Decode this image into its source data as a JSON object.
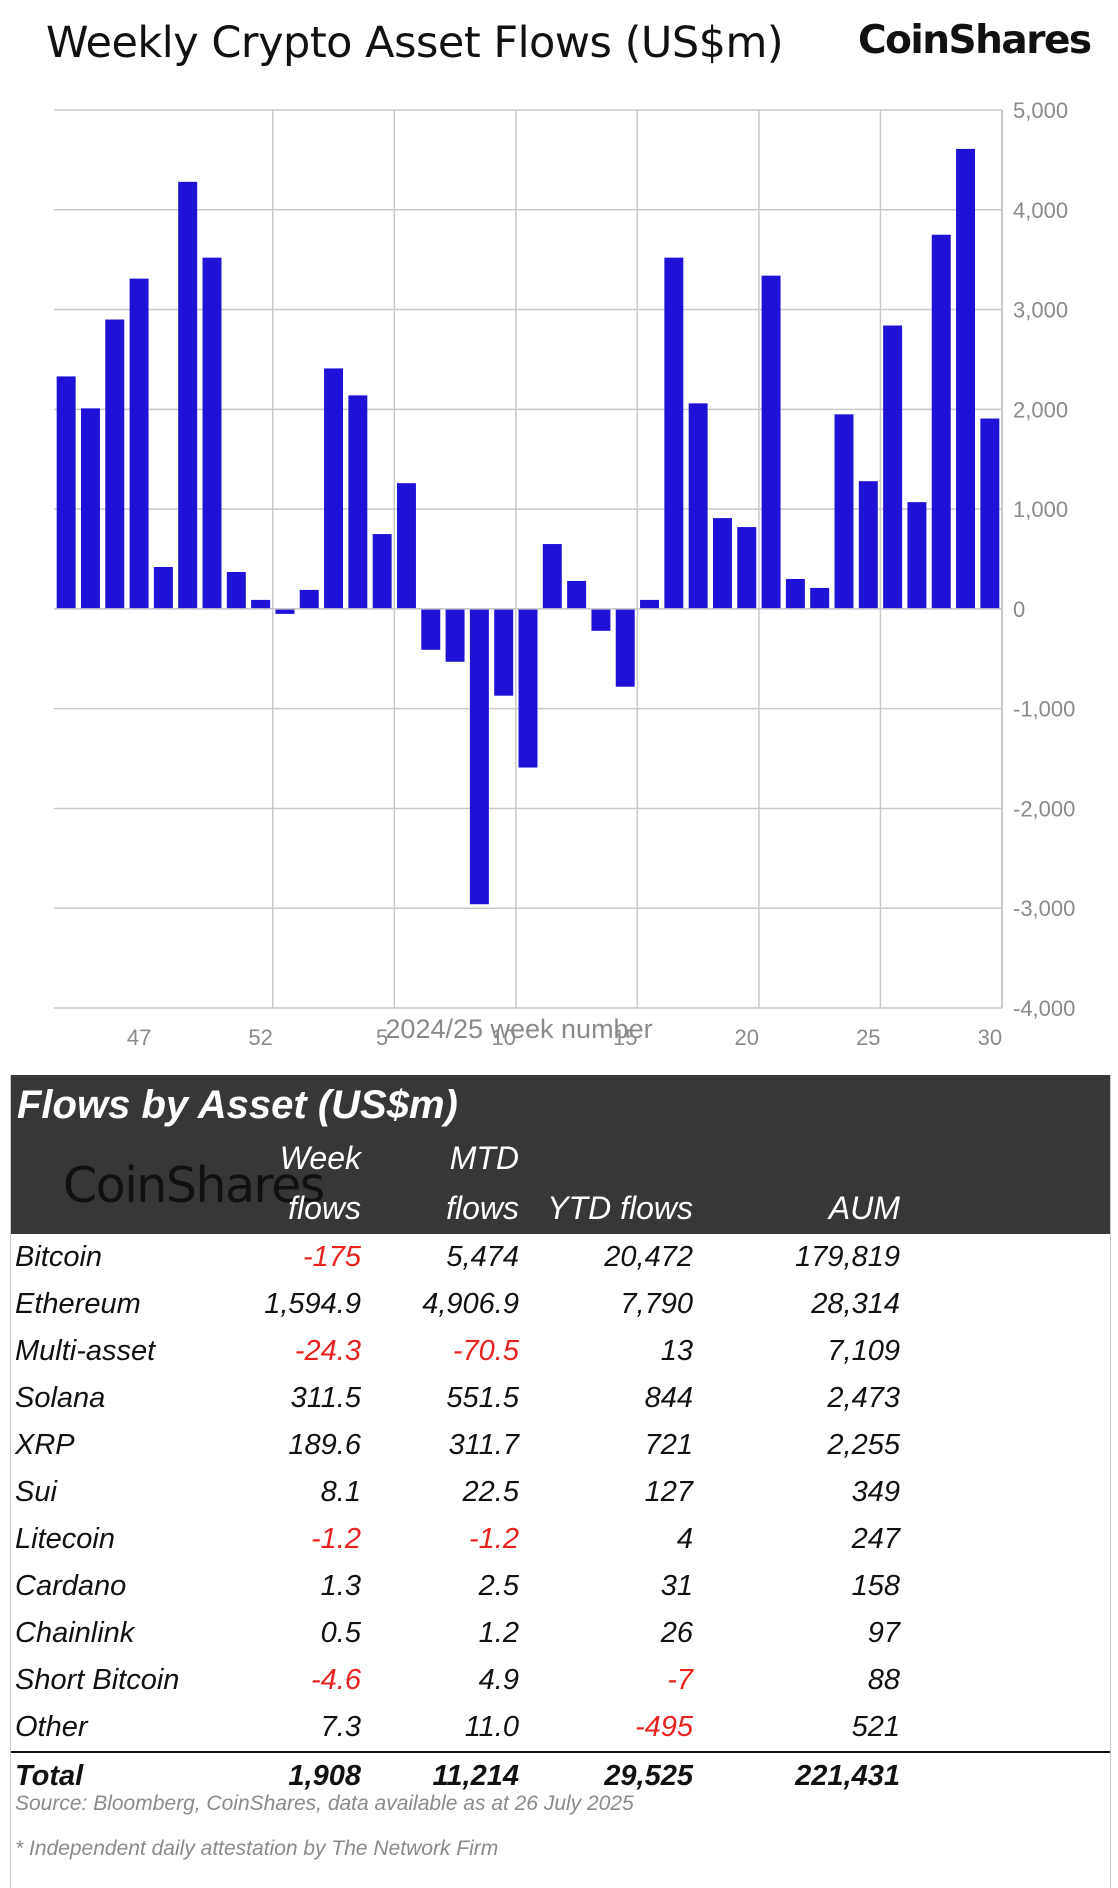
{
  "header": {
    "title": "Weekly Crypto Asset Flows (US$m)",
    "brand": "CoinShares"
  },
  "chart_data": {
    "type": "bar",
    "title": "Weekly Crypto Asset Flows (US$m)",
    "xlabel": "2024/25 week number",
    "ylabel": "",
    "ylim": [
      -4000,
      5000
    ],
    "yticks": [
      5000,
      4000,
      3000,
      2000,
      1000,
      0,
      -1000,
      -2000,
      -3000,
      -4000
    ],
    "ytick_labels": [
      "5,000",
      "4,000",
      "3,000",
      "2,000",
      "1,000",
      "0",
      "-1,000",
      "-2,000",
      "-3,000",
      "-4,000"
    ],
    "xtick_labels": [
      "47",
      "52",
      "5",
      "10",
      "15",
      "20",
      "25",
      "30"
    ],
    "categories": [
      "44",
      "45",
      "46",
      "47",
      "48",
      "49",
      "50",
      "51",
      "52",
      "1",
      "2",
      "3",
      "4",
      "5",
      "6",
      "7",
      "8",
      "9",
      "10",
      "11",
      "12",
      "13",
      "14",
      "15",
      "16",
      "17",
      "18",
      "19",
      "20",
      "21",
      "22",
      "23",
      "24",
      "25",
      "26",
      "27",
      "28",
      "29",
      "30"
    ],
    "values": [
      2330,
      2010,
      2900,
      3310,
      420,
      4280,
      3520,
      370,
      90,
      -50,
      190,
      2410,
      2140,
      750,
      1260,
      -410,
      -530,
      -2960,
      -870,
      -1590,
      650,
      280,
      -220,
      -780,
      90,
      3520,
      2060,
      910,
      820,
      3340,
      300,
      210,
      1950,
      1280,
      2840,
      1070,
      3750,
      4610,
      1908
    ],
    "bar_color": "#1f12d6",
    "grid": true,
    "legend": "none"
  },
  "table": {
    "title": "Flows by Asset (US$m)",
    "logo": "CoinShares",
    "headers": {
      "week_top": "Week",
      "week_bottom": "flows",
      "mtd_top": "MTD",
      "mtd_bottom": "flows",
      "ytd": "YTD flows",
      "aum": "AUM"
    },
    "rows": [
      {
        "name": "Bitcoin",
        "week": "-175",
        "mtd": "5,474",
        "ytd": "20,472",
        "aum": "179,819"
      },
      {
        "name": "Ethereum",
        "week": "1,594.9",
        "mtd": "4,906.9",
        "ytd": "7,790",
        "aum": "28,314"
      },
      {
        "name": "Multi-asset",
        "week": "-24.3",
        "mtd": "-70.5",
        "ytd": "13",
        "aum": "7,109"
      },
      {
        "name": "Solana",
        "week": "311.5",
        "mtd": "551.5",
        "ytd": "844",
        "aum": "2,473"
      },
      {
        "name": "XRP",
        "week": "189.6",
        "mtd": "311.7",
        "ytd": "721",
        "aum": "2,255"
      },
      {
        "name": "Sui",
        "week": "8.1",
        "mtd": "22.5",
        "ytd": "127",
        "aum": "349"
      },
      {
        "name": "Litecoin",
        "week": "-1.2",
        "mtd": "-1.2",
        "ytd": "4",
        "aum": "247"
      },
      {
        "name": "Cardano",
        "week": "1.3",
        "mtd": "2.5",
        "ytd": "31",
        "aum": "158"
      },
      {
        "name": "Chainlink",
        "week": "0.5",
        "mtd": "1.2",
        "ytd": "26",
        "aum": "97"
      },
      {
        "name": "Short Bitcoin",
        "week": "-4.6",
        "mtd": "4.9",
        "ytd": "-7",
        "aum": "88"
      },
      {
        "name": "Other",
        "week": "7.3",
        "mtd": "11.0",
        "ytd": "-495",
        "aum": "521"
      }
    ],
    "total": {
      "name": "Total",
      "week": "1,908",
      "mtd": "11,214",
      "ytd": "29,525",
      "aum": "221,431"
    },
    "negative_color": "#e8231f",
    "source": "Source: Bloomberg, CoinShares, data available as at 26 July 2025",
    "footnote": "* Independent daily attestation by The Network Firm"
  }
}
